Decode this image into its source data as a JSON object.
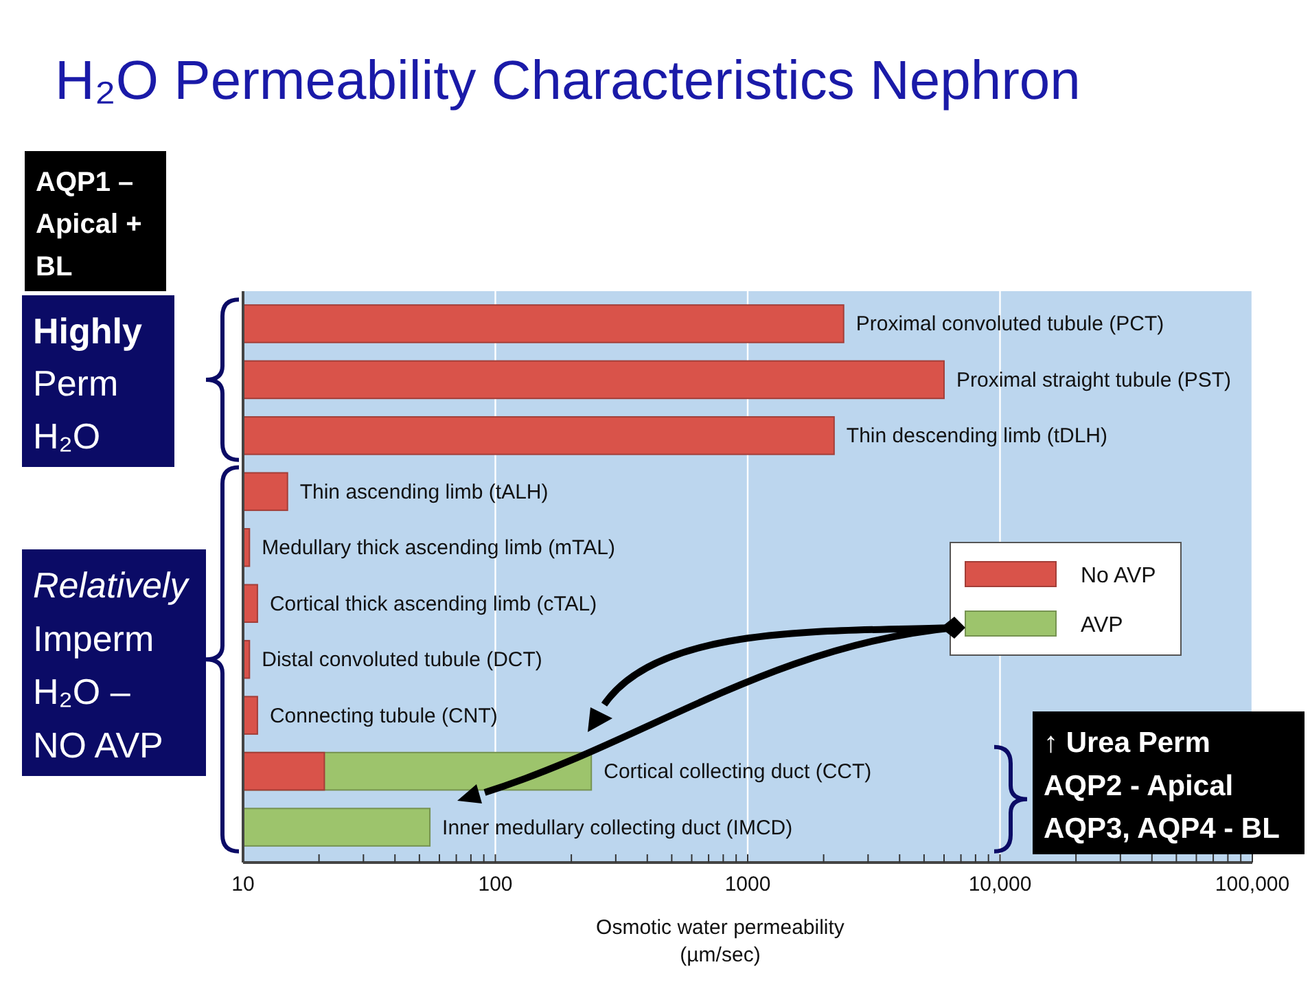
{
  "chart_data": {
    "type": "bar",
    "orientation": "horizontal",
    "title": "H₂O Permeability Characteristics Nephron",
    "xlabel": "Osmotic water permeability\n(µm/sec)",
    "categories": [
      "Proximal convoluted tubule (PCT)",
      "Proximal straight tubule (PST)",
      "Thin descending limb (tDLH)",
      "Thin ascending limb (tALH)",
      "Medullary thick ascending limb (mTAL)",
      "Cortical thick ascending limb (cTAL)",
      "Distal convoluted tubule (DCT)",
      "Connecting tubule (CNT)",
      "Cortical collecting duct (CCT)",
      "Inner medullary collecting duct (IMCD)"
    ],
    "series": [
      {
        "name": "No AVP",
        "color": "#d9534a",
        "values": [
          2400,
          6000,
          2200,
          15,
          10.6,
          11.4,
          10.6,
          11.4,
          21,
          null
        ]
      },
      {
        "name": "AVP",
        "color": "#9dc46c",
        "values": [
          null,
          null,
          null,
          null,
          null,
          null,
          null,
          null,
          240,
          55
        ]
      }
    ],
    "log": "x",
    "xlim": [
      10,
      100000
    ],
    "xticks": [
      10,
      {
        "value": 20,
        "label": null
      },
      {
        "value": 30,
        "label": null
      },
      {
        "value": 40,
        "label": null
      },
      {
        "value": 50,
        "label": null
      },
      {
        "value": 60,
        "label": null
      },
      {
        "value": 70,
        "label": null
      },
      {
        "value": 80,
        "label": null
      },
      {
        "value": 90,
        "label": null
      },
      100,
      {
        "value": 200,
        "label": null
      },
      {
        "value": 300,
        "label": null
      },
      {
        "value": 400,
        "label": null
      },
      {
        "value": 500,
        "label": null
      },
      {
        "value": 600,
        "label": null
      },
      {
        "value": 700,
        "label": null
      },
      {
        "value": 800,
        "label": null
      },
      {
        "value": 900,
        "label": null
      },
      1000,
      {
        "value": 2000,
        "label": null
      },
      {
        "value": 3000,
        "label": null
      },
      {
        "value": 4000,
        "label": null
      },
      {
        "value": 5000,
        "label": null
      },
      {
        "value": 6000,
        "label": null
      },
      {
        "value": 7000,
        "label": null
      },
      {
        "value": 8000,
        "label": null
      },
      {
        "value": 9000,
        "label": null
      },
      {
        "value": 10000,
        "label": "10,000"
      },
      {
        "value": 20000,
        "label": null
      },
      {
        "value": 30000,
        "label": null
      },
      {
        "value": 40000,
        "label": null
      },
      {
        "value": 50000,
        "label": null
      },
      {
        "value": 60000,
        "label": null
      },
      {
        "value": 70000,
        "label": null
      },
      {
        "value": 80000,
        "label": null
      },
      {
        "value": 90000,
        "label": null
      },
      {
        "value": 100000,
        "label": "100,000"
      }
    ],
    "grid": "x",
    "legend": "right",
    "annotations": [
      "AQP1 –\nApical +\nBL",
      "Highly\nPerm\nH₂O",
      "Relatively\nImperm\nH₂O –\nNO AVP",
      "↑ Urea Perm\nAQP2 - Apical\nAQP3, AQP4 - BL"
    ]
  }
}
